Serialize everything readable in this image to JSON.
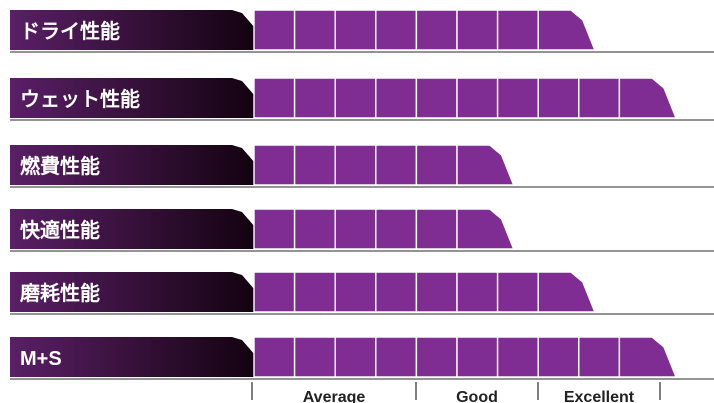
{
  "chart_data": {
    "type": "bar",
    "title": "",
    "scale_max": 10,
    "categories": [
      "ドライ性能",
      "ウェット性能",
      "燃費性能",
      "快適性能",
      "磨耗性能",
      "M+S"
    ],
    "values": [
      8,
      10,
      6,
      6,
      8,
      10
    ],
    "scale_labels": [
      "Average",
      "Good",
      "Excellent"
    ],
    "colors": {
      "segment": "#7f2d92",
      "segment_border": "#ffffff",
      "label_dark": "#0d0008",
      "label_light": "#5a1f66",
      "baseline": "#555555",
      "scale_text": "#222222"
    }
  }
}
